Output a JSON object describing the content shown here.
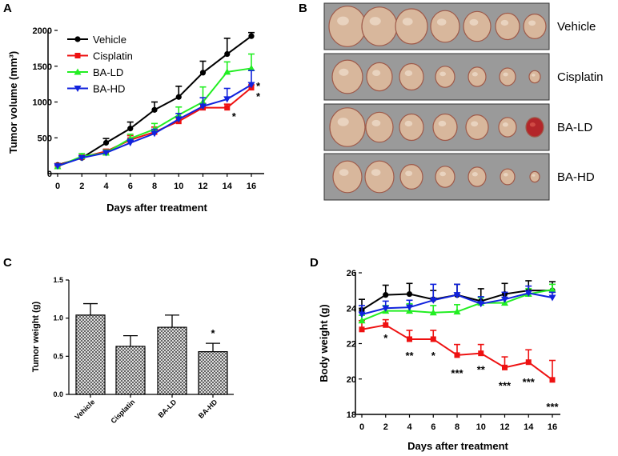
{
  "panel_labels": {
    "a": "A",
    "b": "B",
    "c": "C",
    "d": "D"
  },
  "colors": {
    "vehicle": "#000000",
    "cisplatin": "#ee1111",
    "ba_ld": "#22ee22",
    "ba_hd": "#1122dd"
  },
  "chart_data": [
    {
      "id": "A",
      "type": "line",
      "title": "",
      "xlabel": "Days after treatment",
      "ylabel": "Tumor volume (mm³)",
      "x": [
        0,
        2,
        4,
        6,
        8,
        10,
        12,
        14,
        16
      ],
      "xlim": [
        0,
        16
      ],
      "ylim": [
        0,
        2000
      ],
      "yticks": [
        0,
        500,
        1000,
        1500,
        2000
      ],
      "legend_position": "top-left",
      "series": [
        {
          "name": "Vehicle",
          "color": "#000000",
          "marker": "circle",
          "values": [
            120,
            220,
            430,
            630,
            890,
            1070,
            1410,
            1670,
            1920
          ],
          "errors": [
            20,
            30,
            60,
            90,
            110,
            150,
            160,
            220,
            50
          ]
        },
        {
          "name": "Cisplatin",
          "color": "#ee1111",
          "marker": "square",
          "values": [
            110,
            230,
            310,
            470,
            580,
            730,
            920,
            920,
            1200
          ],
          "errors": [
            15,
            25,
            30,
            60,
            70,
            50,
            60,
            50,
            40
          ]
        },
        {
          "name": "BA-LD",
          "color": "#22ee22",
          "marker": "triangle-up",
          "values": [
            100,
            240,
            290,
            490,
            620,
            820,
            1000,
            1420,
            1470
          ],
          "errors": [
            20,
            40,
            40,
            60,
            80,
            110,
            210,
            140,
            200
          ]
        },
        {
          "name": "BA-HD",
          "color": "#1122dd",
          "marker": "triangle-down",
          "values": [
            105,
            220,
            290,
            430,
            560,
            760,
            940,
            1040,
            1240
          ],
          "errors": [
            15,
            20,
            30,
            50,
            60,
            80,
            120,
            150,
            200
          ]
        }
      ],
      "annotations": [
        {
          "x": 14,
          "y": 840,
          "text": "*"
        },
        {
          "x": 16,
          "y": 1260,
          "text": "*"
        },
        {
          "x": 16,
          "y": 1120,
          "text": "*"
        }
      ]
    },
    {
      "id": "C",
      "type": "bar",
      "ylabel": "Tumor weight (g)",
      "categories": [
        "Vehicle",
        "Cisplatin",
        "BA-LD",
        "BA-HD"
      ],
      "values": [
        1.04,
        0.63,
        0.88,
        0.56
      ],
      "errors": [
        0.15,
        0.14,
        0.16,
        0.11
      ],
      "ylim": [
        0,
        1.5
      ],
      "yticks": [
        "0.0",
        "0.5",
        "1.0",
        "1.5"
      ],
      "annotations": [
        {
          "category": "BA-HD",
          "text": "*"
        }
      ]
    },
    {
      "id": "D",
      "type": "line",
      "xlabel": "Days after treatment",
      "ylabel": "Body weight (g)",
      "x": [
        0,
        2,
        4,
        6,
        8,
        10,
        12,
        14,
        16
      ],
      "xlim": [
        0,
        16
      ],
      "ylim": [
        18,
        26
      ],
      "yticks": [
        18,
        20,
        22,
        24,
        26
      ],
      "series": [
        {
          "name": "Vehicle",
          "color": "#000000",
          "marker": "circle",
          "values": [
            23.9,
            24.75,
            24.8,
            24.5,
            24.75,
            24.4,
            24.8,
            25.0,
            25.0
          ],
          "errors": [
            0.6,
            0.55,
            0.6,
            0.5,
            0.6,
            0.7,
            0.6,
            0.55,
            0.5
          ]
        },
        {
          "name": "Cisplatin",
          "color": "#ee1111",
          "marker": "square",
          "values": [
            22.8,
            23.05,
            22.25,
            22.25,
            21.35,
            21.45,
            20.65,
            20.95,
            19.95
          ],
          "errors": [
            0.5,
            0.3,
            0.5,
            0.5,
            0.6,
            0.5,
            0.6,
            0.7,
            1.1
          ]
        },
        {
          "name": "BA-LD",
          "color": "#22ee22",
          "marker": "triangle-up",
          "values": [
            23.3,
            23.85,
            23.85,
            23.75,
            23.8,
            24.3,
            24.3,
            24.8,
            25.05
          ],
          "errors": [
            0.3,
            0.3,
            0.4,
            0.4,
            0.4,
            0.3,
            0.3,
            0.3,
            0.3
          ]
        },
        {
          "name": "BA-HD",
          "color": "#1122dd",
          "marker": "triangle-down",
          "values": [
            23.65,
            24.0,
            24.05,
            24.45,
            24.75,
            24.25,
            24.5,
            24.85,
            24.6
          ],
          "errors": [
            0.5,
            0.4,
            0.4,
            0.9,
            0.6,
            0.4,
            0.4,
            0.4,
            0.3
          ]
        }
      ],
      "annotations": [
        {
          "x": 2,
          "text": "*"
        },
        {
          "x": 4,
          "text": "**"
        },
        {
          "x": 6,
          "text": "*"
        },
        {
          "x": 8,
          "text": "***"
        },
        {
          "x": 10,
          "text": "**"
        },
        {
          "x": 12,
          "text": "***"
        },
        {
          "x": 14,
          "text": "***"
        },
        {
          "x": 16,
          "text": "***"
        }
      ]
    }
  ],
  "photos": {
    "rows": [
      {
        "label": "Vehicle",
        "count": 7
      },
      {
        "label": "Cisplatin",
        "count": 7
      },
      {
        "label": "BA-LD",
        "count": 7
      },
      {
        "label": "BA-HD",
        "count": 7
      }
    ]
  }
}
